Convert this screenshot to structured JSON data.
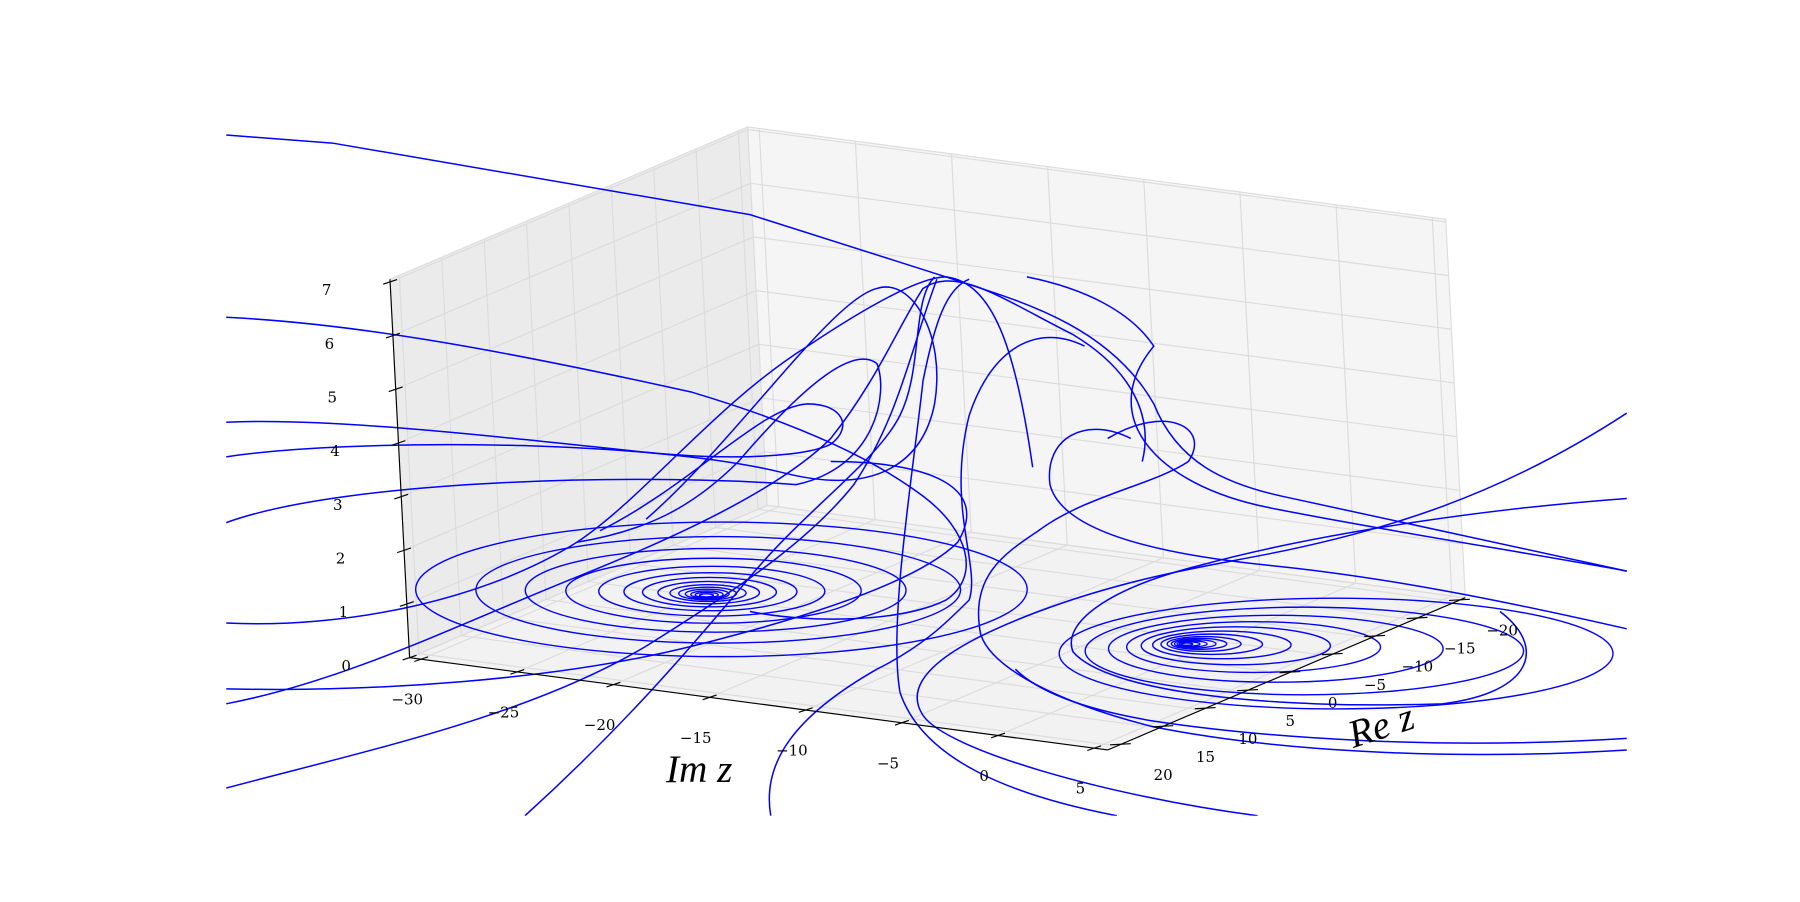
{
  "chart_data": {
    "type": "line3d",
    "xlabel": "Im z",
    "ylabel": "Re z",
    "xlim": [
      -30.6,
      5.7
    ],
    "ylim": [
      21.1,
      -21.1
    ],
    "zlim": [
      0,
      7.05
    ],
    "xticks": [
      {
        "value": -30,
        "label": "−30"
      },
      {
        "value": -25,
        "label": "−25"
      },
      {
        "value": -20,
        "label": "−20"
      },
      {
        "value": -15,
        "label": "−15"
      },
      {
        "value": -10,
        "label": "−10"
      },
      {
        "value": -5,
        "label": "−5"
      },
      0,
      5
    ],
    "yticks": [
      20,
      15,
      10,
      5,
      0,
      {
        "value": -5,
        "label": "−5"
      },
      {
        "value": -10,
        "label": "−10"
      },
      {
        "value": -15,
        "label": "−15"
      },
      {
        "value": -20,
        "label": "−20"
      }
    ],
    "zticks": [
      0,
      1,
      2,
      3,
      4,
      5,
      6,
      7
    ],
    "color": "#0000ff",
    "grid": true
  }
}
